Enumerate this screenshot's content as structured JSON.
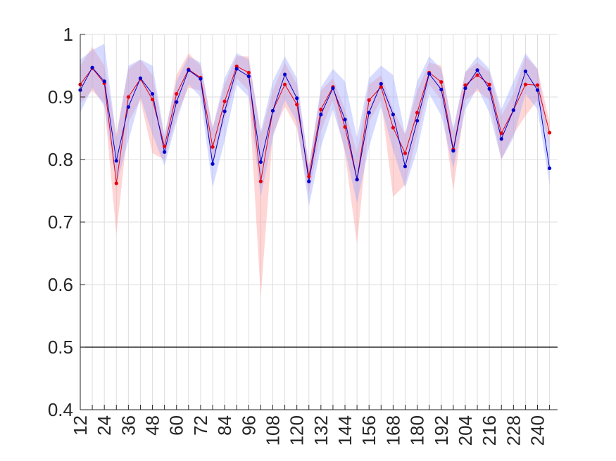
{
  "chart_data": {
    "type": "line",
    "title": "",
    "xlabel": "",
    "ylabel": "",
    "ylim": [
      0.4,
      1.0
    ],
    "xlim": [
      12,
      250
    ],
    "grid": true,
    "legend": "none",
    "yticks": [
      0.4,
      0.5,
      0.6,
      0.7,
      0.8,
      0.9,
      1.0
    ],
    "ytick_labels": [
      "0.4",
      "0.5",
      "0.6",
      "0.7",
      "0.8",
      "0.9",
      "1"
    ],
    "xticks": [
      12,
      24,
      36,
      48,
      60,
      72,
      84,
      96,
      108,
      120,
      132,
      144,
      156,
      168,
      180,
      192,
      204,
      216,
      228,
      240
    ],
    "xtick_labels": [
      "12",
      "24",
      "36",
      "48",
      "60",
      "72",
      "84",
      "96",
      "108",
      "120",
      "132",
      "144",
      "156",
      "168",
      "180",
      "192",
      "204",
      "216",
      "228",
      "240"
    ],
    "reference_line": {
      "y": 0.5,
      "color": "#000000"
    },
    "x": [
      12,
      18,
      24,
      30,
      36,
      42,
      48,
      54,
      60,
      66,
      72,
      78,
      84,
      90,
      96,
      102,
      108,
      114,
      120,
      126,
      132,
      138,
      144,
      150,
      156,
      162,
      168,
      174,
      180,
      186,
      192,
      198,
      204,
      210,
      216,
      222,
      228,
      234,
      240,
      246
    ],
    "series": [
      {
        "color": "#e8000b",
        "band_color": "#ff9999",
        "values": [
          0.92,
          0.946,
          0.922,
          0.762,
          0.9,
          0.929,
          0.896,
          0.821,
          0.905,
          0.944,
          0.931,
          0.82,
          0.893,
          0.949,
          0.939,
          0.765,
          0.878,
          0.92,
          0.888,
          0.773,
          0.88,
          0.916,
          0.852,
          0.768,
          0.895,
          0.916,
          0.851,
          0.81,
          0.875,
          0.939,
          0.924,
          0.816,
          0.919,
          0.935,
          0.92,
          0.842,
          0.879,
          0.92,
          0.919,
          0.843
        ],
        "upper": [
          0.95,
          0.98,
          0.95,
          0.84,
          0.945,
          0.96,
          0.935,
          0.835,
          0.935,
          0.97,
          0.95,
          0.85,
          0.92,
          0.965,
          0.965,
          0.84,
          0.91,
          0.955,
          0.92,
          0.79,
          0.91,
          0.93,
          0.88,
          0.81,
          0.92,
          0.935,
          0.88,
          0.84,
          0.91,
          0.955,
          0.95,
          0.845,
          0.94,
          0.955,
          0.94,
          0.87,
          0.905,
          0.965,
          0.945,
          0.86
        ],
        "lower": [
          0.89,
          0.91,
          0.89,
          0.68,
          0.86,
          0.895,
          0.81,
          0.8,
          0.87,
          0.915,
          0.91,
          0.79,
          0.865,
          0.93,
          0.91,
          0.58,
          0.84,
          0.885,
          0.85,
          0.745,
          0.845,
          0.895,
          0.81,
          0.665,
          0.86,
          0.895,
          0.74,
          0.76,
          0.84,
          0.92,
          0.895,
          0.75,
          0.895,
          0.91,
          0.895,
          0.8,
          0.84,
          0.87,
          0.895,
          0.825
        ]
      },
      {
        "color": "#0000cc",
        "band_color": "#9aa6ff",
        "values": [
          0.911,
          0.947,
          0.925,
          0.798,
          0.884,
          0.93,
          0.905,
          0.812,
          0.892,
          0.943,
          0.929,
          0.793,
          0.877,
          0.945,
          0.933,
          0.796,
          0.878,
          0.936,
          0.898,
          0.765,
          0.872,
          0.914,
          0.864,
          0.768,
          0.875,
          0.921,
          0.872,
          0.789,
          0.862,
          0.937,
          0.912,
          0.814,
          0.914,
          0.943,
          0.913,
          0.833,
          0.879,
          0.941,
          0.911,
          0.786
        ],
        "upper": [
          0.96,
          0.975,
          0.985,
          0.835,
          0.95,
          0.96,
          0.95,
          0.84,
          0.925,
          0.965,
          0.955,
          0.85,
          0.93,
          0.97,
          0.96,
          0.845,
          0.925,
          0.965,
          0.93,
          0.79,
          0.915,
          0.945,
          0.925,
          0.835,
          0.93,
          0.95,
          0.935,
          0.84,
          0.925,
          0.965,
          0.945,
          0.85,
          0.94,
          0.965,
          0.945,
          0.88,
          0.925,
          0.97,
          0.945,
          0.825
        ],
        "lower": [
          0.875,
          0.915,
          0.885,
          0.76,
          0.83,
          0.9,
          0.84,
          0.79,
          0.86,
          0.92,
          0.9,
          0.755,
          0.83,
          0.92,
          0.9,
          0.74,
          0.835,
          0.895,
          0.86,
          0.725,
          0.82,
          0.88,
          0.815,
          0.73,
          0.82,
          0.885,
          0.815,
          0.755,
          0.815,
          0.905,
          0.87,
          0.785,
          0.88,
          0.915,
          0.875,
          0.8,
          0.835,
          0.905,
          0.88,
          0.76
        ]
      }
    ]
  }
}
